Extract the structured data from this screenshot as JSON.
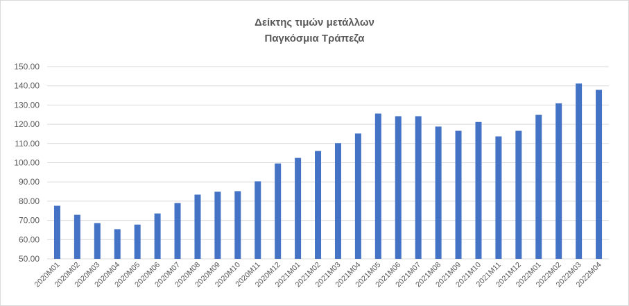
{
  "chart_data": {
    "type": "bar",
    "title": "Δείκτης τιμών μετάλλων",
    "subtitle": "Παγκόσμια Τράπεζα",
    "xlabel": "",
    "ylabel": "",
    "ylim": [
      50,
      150
    ],
    "yticks": [
      "50.00",
      "60.00",
      "70.00",
      "80.00",
      "90.00",
      "100.00",
      "110.00",
      "120.00",
      "130.00",
      "140.00",
      "150.00"
    ],
    "grid": true,
    "legend": "none",
    "bar_color": "#4472c4",
    "categories": [
      "2020M01",
      "2020M02",
      "2020M03",
      "2020M04",
      "2020M05",
      "2020M06",
      "2020M07",
      "2020M08",
      "2020M09",
      "2020M10",
      "2020M11",
      "2020M12",
      "2021M01",
      "2021M02",
      "2021M03",
      "2021M04",
      "2021M05",
      "2021M06",
      "2021M07",
      "2021M08",
      "2021M09",
      "2021M10",
      "2021M11",
      "2021M12",
      "2022M01",
      "2022M02",
      "2022M03",
      "2022M04"
    ],
    "values": [
      77.6,
      72.9,
      68.6,
      65.4,
      67.8,
      73.6,
      79.0,
      83.4,
      84.9,
      85.2,
      90.3,
      99.6,
      102.5,
      106.1,
      110.2,
      115.2,
      125.6,
      124.2,
      124.2,
      118.8,
      116.6,
      121.2,
      113.7,
      116.6,
      124.9,
      130.9,
      141.2,
      137.9
    ]
  }
}
